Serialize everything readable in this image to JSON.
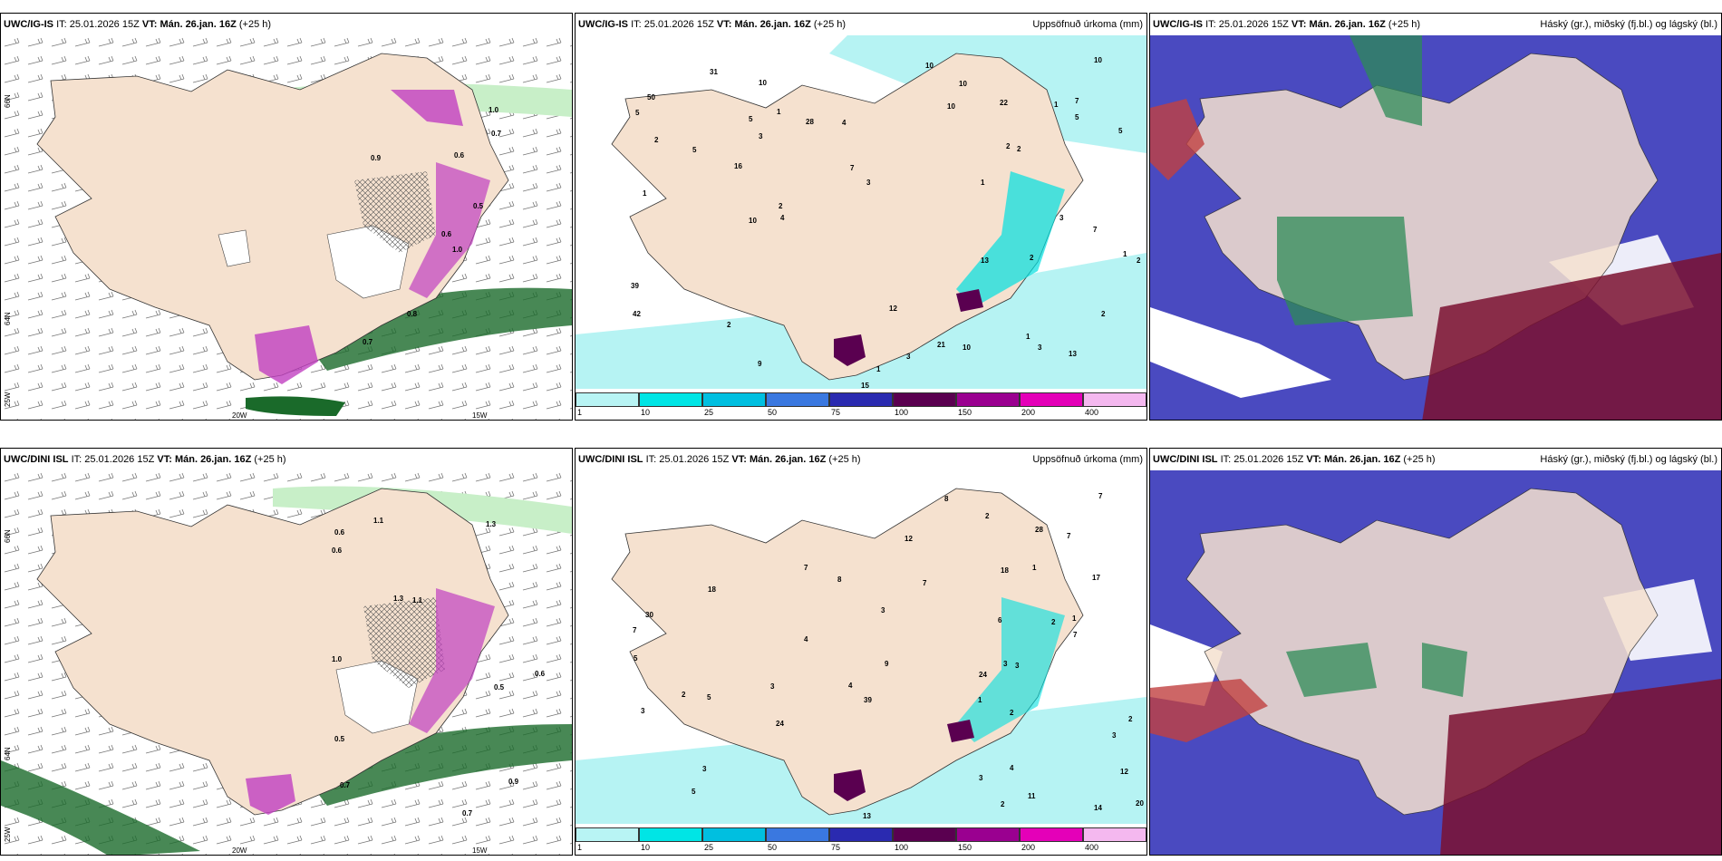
{
  "panels": [
    {
      "id": "p1",
      "model": "UWC/IG-IS",
      "it_label": "IT:",
      "it_value": "25.01.2026 15Z",
      "vt_label": "VT:",
      "vt_value": "Mán. 26.jan. 16Z",
      "lead": "(+25 h)",
      "right_title": ""
    },
    {
      "id": "p2",
      "model": "UWC/IG-IS",
      "it_label": "IT:",
      "it_value": "25.01.2026 15Z",
      "vt_label": "VT:",
      "vt_value": "Mán. 26.jan. 16Z",
      "lead": "(+25 h)",
      "right_title": "Uppsöfnuð úrkoma (mm)"
    },
    {
      "id": "p3",
      "model": "UWC/IG-IS",
      "it_label": "IT:",
      "it_value": "25.01.2026 15Z",
      "vt_label": "VT:",
      "vt_value": "Mán. 26.jan. 16Z",
      "lead": "(+25 h)",
      "right_title": "Háský (gr.), miðský (fj.bl.) og lágský (bl.)"
    },
    {
      "id": "p4",
      "model": "UWC/DINI ISL",
      "it_label": "IT:",
      "it_value": "25.01.2026 15Z",
      "vt_label": "VT:",
      "vt_value": "Mán. 26.jan. 16Z",
      "lead": "(+25 h)",
      "right_title": ""
    },
    {
      "id": "p5",
      "model": "UWC/DINI ISL",
      "it_label": "IT:",
      "it_value": "25.01.2026 15Z",
      "vt_label": "VT:",
      "vt_value": "Mán. 26.jan. 16Z",
      "lead": "(+25 h)",
      "right_title": "Uppsöfnuð úrkoma (mm)"
    },
    {
      "id": "p6",
      "model": "UWC/DINI ISL",
      "it_label": "IT:",
      "it_value": "25.01.2026 15Z",
      "vt_label": "VT:",
      "vt_value": "Mán. 26.jan. 16Z",
      "lead": "(+25 h)",
      "right_title": "Háský (gr.), miðský (fj.bl.) og lágský (bl.)"
    }
  ],
  "wind_map_labels": {
    "lat_66": "66N",
    "lat_64": "64N",
    "lon_25": "25W",
    "lon_20": "20W",
    "lon_15": "15W"
  },
  "precip_legend": {
    "levels": [
      "1",
      "10",
      "25",
      "50",
      "75",
      "100",
      "150",
      "200",
      "400"
    ],
    "colors": [
      "#b8f4f4",
      "#00e5e5",
      "#00bfe0",
      "#3a78e0",
      "#2a2ab0",
      "#5a0050",
      "#9a0090",
      "#e400b8",
      "#f4b8ef"
    ]
  },
  "wind_top_values": [
    "1.0",
    "0.9",
    "0.6",
    "0.7",
    "0.5",
    "0.8",
    "1.0",
    "0.6",
    "0.7"
  ],
  "wind_bottom_values": [
    "0.5",
    "0.6",
    "0.7",
    "1.1",
    "1.1",
    "0.9",
    "0.5",
    "1.3",
    "1.3",
    "0.7",
    "0.6",
    "1.0",
    "0.6"
  ],
  "precip_top_values": [
    "2",
    "3",
    "1",
    "1",
    "1",
    "15",
    "13",
    "4",
    "7",
    "2",
    "1",
    "1",
    "2",
    "2",
    "1",
    "9",
    "2",
    "4",
    "13",
    "21",
    "3",
    "7",
    "3",
    "12",
    "22",
    "16",
    "5",
    "10",
    "31",
    "10",
    "39",
    "10",
    "10",
    "5",
    "50",
    "10",
    "28",
    "10",
    "10",
    "42",
    "2",
    "5",
    "7",
    "1",
    "3",
    "5",
    "5",
    "3",
    "2",
    "2"
  ],
  "precip_bottom_values": [
    "1",
    "2",
    "2",
    "3",
    "3",
    "1",
    "1",
    "3",
    "12",
    "11",
    "3",
    "24",
    "3",
    "2",
    "24",
    "14",
    "7",
    "2",
    "28",
    "8",
    "39",
    "5",
    "6",
    "2",
    "7",
    "3",
    "18",
    "18",
    "20",
    "5",
    "17",
    "8",
    "30",
    "4",
    "4",
    "5",
    "7",
    "9",
    "3",
    "2",
    "4",
    "3",
    "12",
    "13",
    "7",
    "7",
    "7"
  ],
  "colors": {
    "land": "#f5e1cf",
    "ocean": "#ffffff",
    "precip_light": "#b6f3f3",
    "precip_cyan": "#00e0e0",
    "cloud_high": "#2e8b57",
    "cloud_mid": "#4a4ac0",
    "cloud_low": "#7a1030",
    "wind_green_light": "#c8efc8",
    "wind_green_dark": "#1a6a2a",
    "magenta": "#c040c0"
  }
}
